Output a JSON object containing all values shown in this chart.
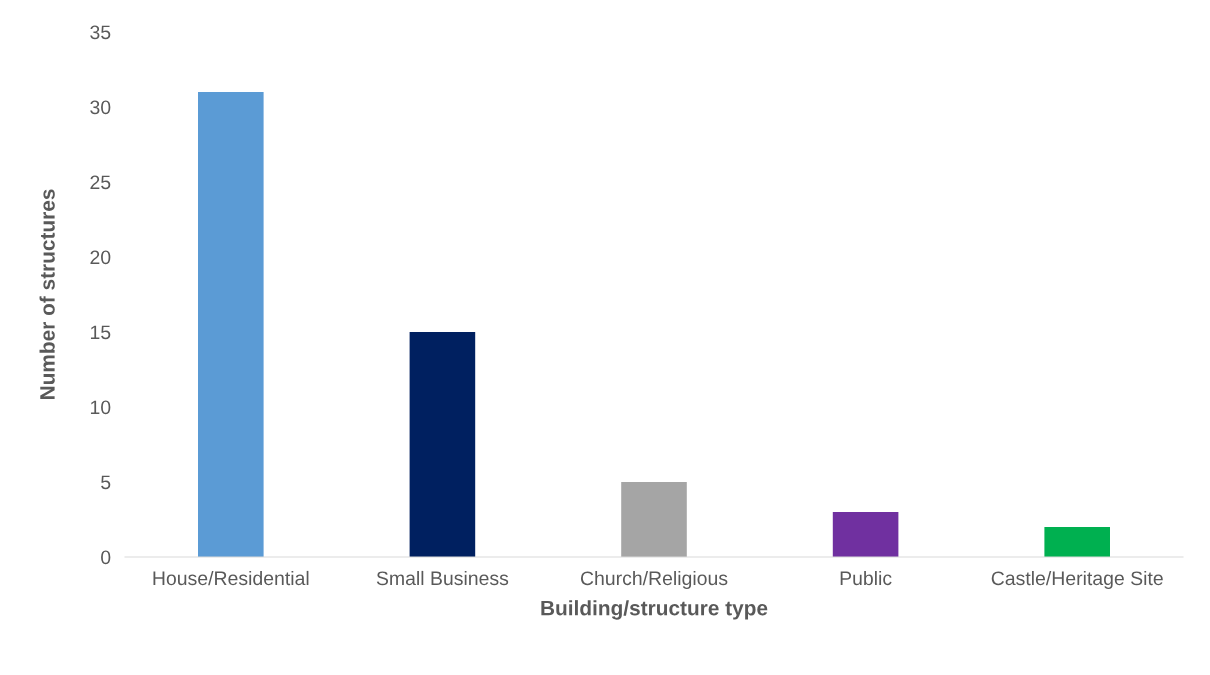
{
  "chart_data": {
    "type": "bar",
    "xlabel": "Building/structure type",
    "ylabel": "Number of structures",
    "categories": [
      "House/Residential",
      "Small Business",
      "Church/Religious",
      "Public",
      "Castle/Heritage Site"
    ],
    "values": [
      31,
      15,
      5,
      3,
      2
    ],
    "colors": [
      "#5b9bd5",
      "#002060",
      "#a5a5a5",
      "#7030a0",
      "#00b050"
    ],
    "ylim": [
      0,
      35
    ],
    "yticks": [
      0,
      5,
      10,
      15,
      20,
      25,
      30,
      35
    ],
    "grid": false,
    "legend": false
  }
}
